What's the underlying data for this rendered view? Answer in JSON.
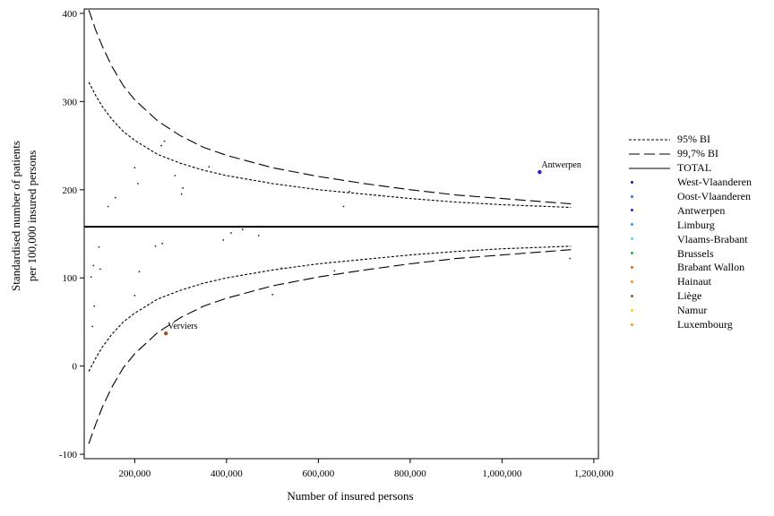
{
  "chart_data": {
    "type": "scatter",
    "title": "",
    "xlabel": "Number of insured persons",
    "ylabel_lines": [
      "Standardised number of patients",
      "per 100,000 insured persons"
    ],
    "xlim": [
      90000,
      1210000
    ],
    "ylim": [
      -105,
      405
    ],
    "x_ticks": [
      200000,
      400000,
      600000,
      800000,
      1000000,
      1200000
    ],
    "x_tick_labels": [
      "200,000",
      "400,000",
      "600,000",
      "800,000",
      "1,000,000",
      "1,200,000"
    ],
    "y_ticks": [
      -100,
      0,
      100,
      200,
      300,
      400
    ],
    "y_tick_labels": [
      "-100",
      "0",
      "100",
      "200",
      "300",
      "400"
    ],
    "total": 158,
    "limit_x": [
      100000,
      115000,
      130000,
      150000,
      175000,
      200000,
      250000,
      300000,
      350000,
      400000,
      500000,
      600000,
      700000,
      800000,
      900000,
      1000000,
      1100000,
      1150000
    ],
    "bands": [
      {
        "name": "95% BI",
        "style": "dotted",
        "upper": [
          322,
          307,
          294,
          280,
          266,
          256,
          240,
          230,
          222,
          216,
          207,
          200,
          195,
          190,
          186,
          183,
          181,
          180
        ],
        "lower": [
          -6,
          9,
          22,
          36,
          50,
          60,
          76,
          86,
          94,
          100,
          109,
          116,
          121,
          126,
          130,
          133,
          135,
          136
        ]
      },
      {
        "name": "99,7% BI",
        "style": "dashed",
        "upper": [
          404,
          381,
          362,
          340,
          318,
          302,
          278,
          261,
          248,
          239,
          225,
          215,
          207,
          200,
          194,
          190,
          186,
          184
        ],
        "lower": [
          -88,
          -66,
          -46,
          -24,
          -2,
          14,
          38,
          55,
          68,
          77,
          91,
          101,
          109,
          116,
          122,
          126,
          130,
          132
        ]
      }
    ],
    "points": [
      {
        "x": 105000,
        "y": 101
      },
      {
        "x": 108000,
        "y": 45
      },
      {
        "x": 110000,
        "y": 114
      },
      {
        "x": 112000,
        "y": 68
      },
      {
        "x": 122000,
        "y": 135
      },
      {
        "x": 125000,
        "y": 110
      },
      {
        "x": 142000,
        "y": 181
      },
      {
        "x": 158000,
        "y": 191
      },
      {
        "x": 200000,
        "y": 225
      },
      {
        "x": 200000,
        "y": 80
      },
      {
        "x": 207000,
        "y": 207
      },
      {
        "x": 210000,
        "y": 107
      },
      {
        "x": 245000,
        "y": 136
      },
      {
        "x": 258000,
        "y": 250
      },
      {
        "x": 260000,
        "y": 139
      },
      {
        "x": 265000,
        "y": 255
      },
      {
        "x": 288000,
        "y": 216
      },
      {
        "x": 302000,
        "y": 195
      },
      {
        "x": 305000,
        "y": 202
      },
      {
        "x": 362000,
        "y": 226
      },
      {
        "x": 393000,
        "y": 143
      },
      {
        "x": 410000,
        "y": 151
      },
      {
        "x": 435000,
        "y": 155
      },
      {
        "x": 470000,
        "y": 148
      },
      {
        "x": 500000,
        "y": 81
      },
      {
        "x": 520000,
        "y": 111
      },
      {
        "x": 635000,
        "y": 108
      },
      {
        "x": 655000,
        "y": 181
      },
      {
        "x": 668000,
        "y": 198
      },
      {
        "x": 1148000,
        "y": 122
      },
      {
        "x": 1082000,
        "y": 220,
        "label": "Antwerpen",
        "color": "#1f1fd8"
      },
      {
        "x": 268000,
        "y": 37,
        "label": "Verviers",
        "color": "#a0522d"
      }
    ]
  },
  "legend": [
    {
      "label": "95% BI",
      "kind": "dotted"
    },
    {
      "label": "99,7% BI",
      "kind": "dashed"
    },
    {
      "label": "TOTAL",
      "kind": "solid"
    },
    {
      "label": "West-Vlaanderen",
      "kind": "dot",
      "color": "#1a1a8c"
    },
    {
      "label": "Oost-Vlaanderen",
      "kind": "dot",
      "color": "#3a6fd8"
    },
    {
      "label": "Antwerpen",
      "kind": "dot",
      "color": "#1f1fd8"
    },
    {
      "label": "Limburg",
      "kind": "dot",
      "color": "#3399dd"
    },
    {
      "label": "Vlaams-Brabant",
      "kind": "dot",
      "color": "#66ccee"
    },
    {
      "label": "Brussels",
      "kind": "dot",
      "color": "#33aa44"
    },
    {
      "label": "Brabant Wallon",
      "kind": "dot",
      "color": "#d2691e"
    },
    {
      "label": "Hainaut",
      "kind": "dot",
      "color": "#ff8c1a"
    },
    {
      "label": "Liège",
      "kind": "dot",
      "color": "#a0522d"
    },
    {
      "label": "Namur",
      "kind": "dot",
      "color": "#ffd700"
    },
    {
      "label": "Luxembourg",
      "kind": "dot",
      "color": "#f0a020"
    }
  ]
}
